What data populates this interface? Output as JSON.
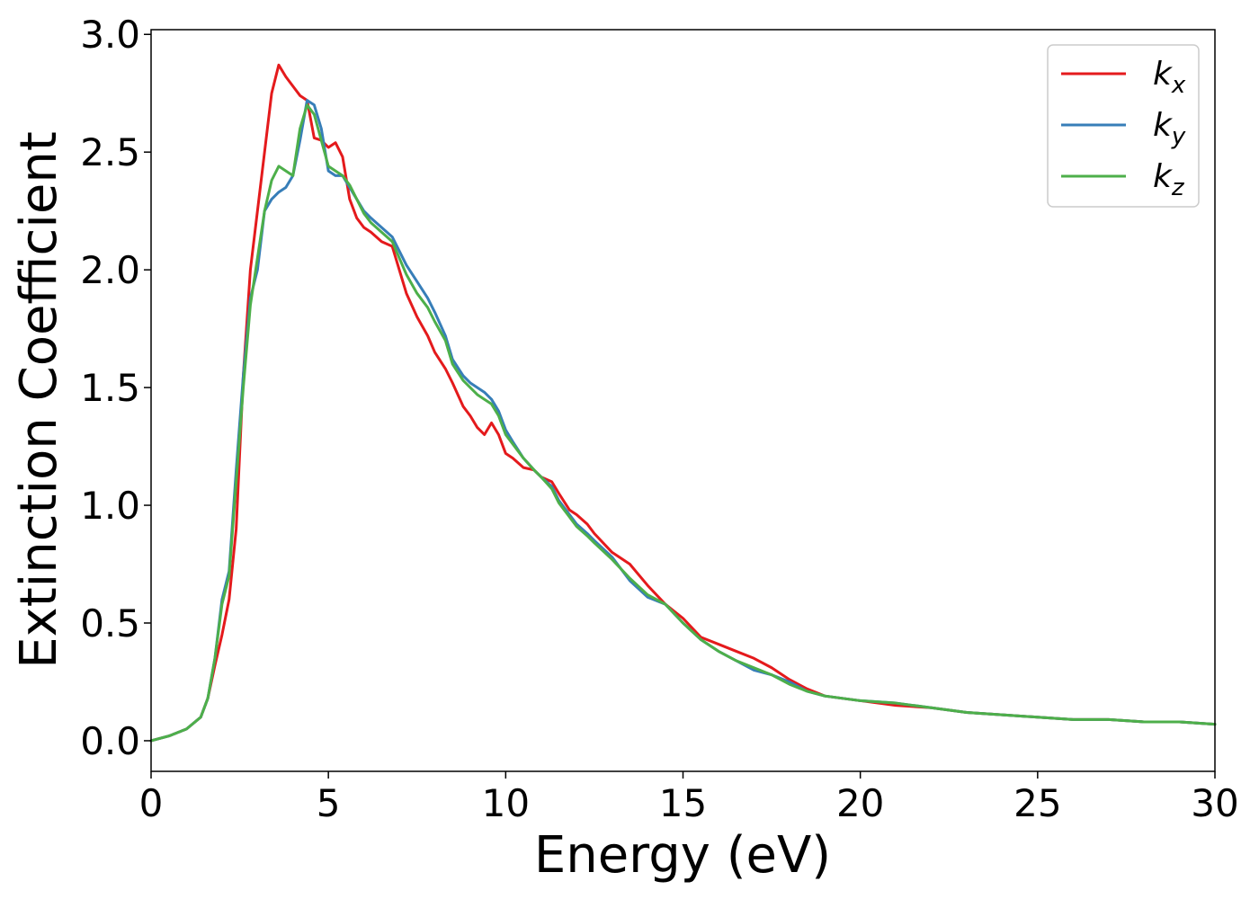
{
  "chart_data": {
    "type": "line",
    "title": "",
    "xlabel": "Energy (eV)",
    "ylabel": "Extinction Coefficient",
    "xlim": [
      0,
      30
    ],
    "ylim": [
      -0.13,
      3.02
    ],
    "xticks": [
      0,
      5,
      10,
      15,
      20,
      25,
      30
    ],
    "xtick_labels": [
      "0",
      "5",
      "10",
      "15",
      "20",
      "25",
      "30"
    ],
    "yticks": [
      0.0,
      0.5,
      1.0,
      1.5,
      2.0,
      2.5,
      3.0
    ],
    "ytick_labels": [
      "0.0",
      "0.5",
      "1.0",
      "1.5",
      "2.0",
      "2.5",
      "3.0"
    ],
    "grid": false,
    "legend_position": "top-right",
    "series": [
      {
        "name": "k",
        "subscript": "x",
        "color": "#e41a1c",
        "x": [
          0,
          0.5,
          1,
          1.4,
          1.6,
          1.8,
          2,
          2.2,
          2.4,
          2.6,
          2.8,
          3,
          3.2,
          3.4,
          3.6,
          3.8,
          4,
          4.2,
          4.4,
          4.6,
          4.8,
          5,
          5.2,
          5.4,
          5.6,
          5.8,
          6,
          6.2,
          6.5,
          6.8,
          7,
          7.2,
          7.5,
          7.8,
          8,
          8.3,
          8.5,
          8.8,
          9,
          9.2,
          9.4,
          9.6,
          9.8,
          10,
          10.2,
          10.5,
          10.8,
          11,
          11.3,
          11.5,
          11.8,
          12,
          12.3,
          12.5,
          13,
          13.5,
          14,
          14.5,
          15,
          15.5,
          16,
          16.5,
          17,
          17.5,
          18,
          18.5,
          19,
          19.5,
          20,
          21,
          22,
          23,
          24,
          25,
          26,
          27,
          28,
          29,
          30
        ],
        "y": [
          0,
          0.02,
          0.05,
          0.1,
          0.18,
          0.32,
          0.45,
          0.6,
          0.9,
          1.55,
          2.0,
          2.25,
          2.5,
          2.75,
          2.87,
          2.82,
          2.78,
          2.74,
          2.72,
          2.56,
          2.55,
          2.52,
          2.54,
          2.48,
          2.3,
          2.22,
          2.18,
          2.16,
          2.12,
          2.1,
          2.0,
          1.9,
          1.8,
          1.72,
          1.65,
          1.58,
          1.52,
          1.42,
          1.38,
          1.33,
          1.3,
          1.35,
          1.3,
          1.22,
          1.2,
          1.16,
          1.15,
          1.12,
          1.1,
          1.05,
          0.98,
          0.96,
          0.92,
          0.88,
          0.8,
          0.75,
          0.66,
          0.58,
          0.52,
          0.44,
          0.41,
          0.38,
          0.35,
          0.31,
          0.26,
          0.22,
          0.19,
          0.18,
          0.17,
          0.15,
          0.14,
          0.12,
          0.11,
          0.1,
          0.09,
          0.09,
          0.08,
          0.08,
          0.07
        ]
      },
      {
        "name": "k",
        "subscript": "y",
        "color": "#377eb8",
        "x": [
          0,
          0.5,
          1,
          1.4,
          1.6,
          1.8,
          2,
          2.2,
          2.4,
          2.6,
          2.8,
          3,
          3.2,
          3.4,
          3.6,
          3.8,
          4,
          4.2,
          4.4,
          4.6,
          4.8,
          5,
          5.2,
          5.4,
          5.6,
          5.8,
          6,
          6.2,
          6.5,
          6.8,
          7,
          7.2,
          7.5,
          7.8,
          8,
          8.3,
          8.5,
          8.8,
          9,
          9.2,
          9.4,
          9.6,
          9.8,
          10,
          10.2,
          10.5,
          10.8,
          11,
          11.3,
          11.5,
          11.8,
          12,
          12.3,
          12.5,
          13,
          13.5,
          14,
          14.5,
          15,
          15.5,
          16,
          16.5,
          17,
          17.5,
          18,
          18.5,
          19,
          19.5,
          20,
          21,
          22,
          23,
          24,
          25,
          26,
          27,
          28,
          29,
          30
        ],
        "y": [
          0,
          0.02,
          0.05,
          0.1,
          0.18,
          0.35,
          0.6,
          0.72,
          1.15,
          1.55,
          1.88,
          2.0,
          2.25,
          2.3,
          2.33,
          2.35,
          2.4,
          2.55,
          2.72,
          2.7,
          2.6,
          2.42,
          2.4,
          2.4,
          2.35,
          2.3,
          2.25,
          2.22,
          2.18,
          2.14,
          2.08,
          2.02,
          1.95,
          1.88,
          1.82,
          1.72,
          1.62,
          1.55,
          1.52,
          1.5,
          1.48,
          1.45,
          1.4,
          1.32,
          1.27,
          1.2,
          1.15,
          1.12,
          1.08,
          1.02,
          0.96,
          0.92,
          0.88,
          0.85,
          0.78,
          0.68,
          0.61,
          0.58,
          0.5,
          0.43,
          0.38,
          0.34,
          0.3,
          0.28,
          0.25,
          0.21,
          0.19,
          0.18,
          0.17,
          0.16,
          0.14,
          0.12,
          0.11,
          0.1,
          0.09,
          0.09,
          0.08,
          0.08,
          0.07
        ]
      },
      {
        "name": "k",
        "subscript": "z",
        "color": "#4daf4a",
        "x": [
          0,
          0.5,
          1,
          1.4,
          1.6,
          1.8,
          2,
          2.2,
          2.4,
          2.6,
          2.8,
          3,
          3.2,
          3.4,
          3.6,
          3.8,
          4,
          4.2,
          4.4,
          4.6,
          4.8,
          5,
          5.2,
          5.4,
          5.6,
          5.8,
          6,
          6.2,
          6.5,
          6.8,
          7,
          7.2,
          7.5,
          7.8,
          8,
          8.3,
          8.5,
          8.8,
          9,
          9.2,
          9.4,
          9.6,
          9.8,
          10,
          10.2,
          10.5,
          10.8,
          11,
          11.3,
          11.5,
          11.8,
          12,
          12.3,
          12.5,
          13,
          13.5,
          14,
          14.5,
          15,
          15.5,
          16,
          16.5,
          17,
          17.5,
          18,
          18.5,
          19,
          19.5,
          20,
          21,
          22,
          23,
          24,
          25,
          26,
          27,
          28,
          29,
          30
        ],
        "y": [
          0,
          0.02,
          0.05,
          0.1,
          0.18,
          0.35,
          0.58,
          0.7,
          1.1,
          1.5,
          1.85,
          2.05,
          2.25,
          2.38,
          2.44,
          2.42,
          2.4,
          2.6,
          2.7,
          2.66,
          2.55,
          2.44,
          2.42,
          2.4,
          2.36,
          2.3,
          2.24,
          2.2,
          2.16,
          2.12,
          2.05,
          1.98,
          1.9,
          1.84,
          1.78,
          1.7,
          1.6,
          1.53,
          1.5,
          1.47,
          1.45,
          1.43,
          1.38,
          1.3,
          1.26,
          1.2,
          1.15,
          1.12,
          1.07,
          1.01,
          0.95,
          0.91,
          0.87,
          0.84,
          0.77,
          0.69,
          0.62,
          0.58,
          0.5,
          0.43,
          0.38,
          0.34,
          0.31,
          0.28,
          0.24,
          0.21,
          0.19,
          0.18,
          0.17,
          0.16,
          0.14,
          0.12,
          0.11,
          0.1,
          0.09,
          0.09,
          0.08,
          0.08,
          0.07
        ]
      }
    ]
  }
}
